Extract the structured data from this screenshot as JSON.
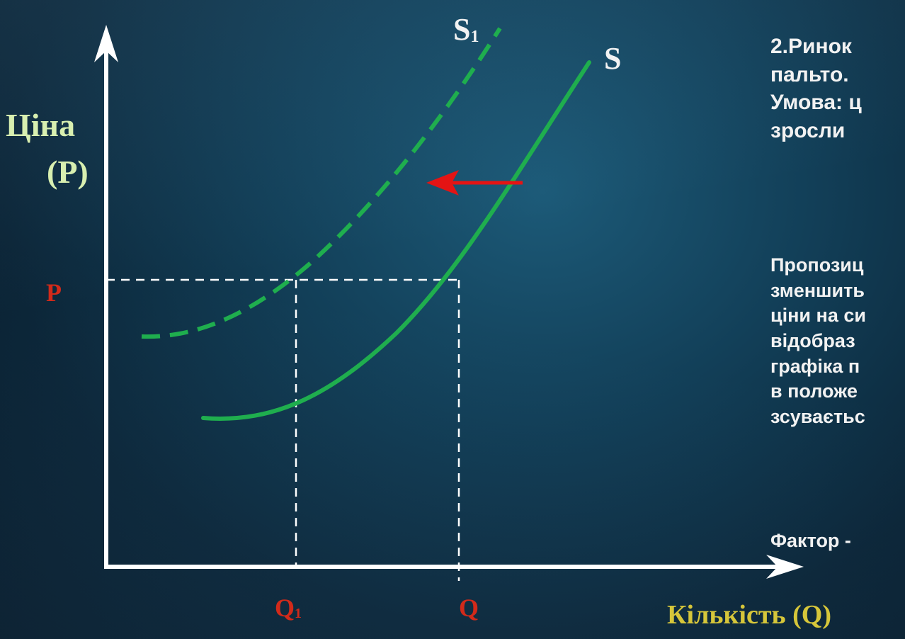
{
  "labels": {
    "y_axis": [
      "Ціна",
      "(P)"
    ],
    "x_axis": "Кількість (Q)",
    "price_marker": "P",
    "q1_marker": "Q",
    "q1_subscript": "1",
    "q_marker": "Q",
    "supply_new": "S",
    "supply_new_subscript": "1",
    "supply_original": "S"
  },
  "text_panel": {
    "block1": [
      "2.Ринок",
      "пальто.",
      "Умова: ц",
      "зросли"
    ],
    "block2": [
      "Пропозиц",
      "зменшить",
      "ціни на си",
      "відобраз",
      "графіка п",
      "в положе",
      "зсуваєтьс"
    ],
    "block3": "Фактор -"
  },
  "colors": {
    "supply_curve": "#1fae4e",
    "shift_arrow": "#e41414",
    "axis": "#ffffff",
    "axis_label": "#d8efb0",
    "marker_label": "#d22a1a",
    "x_axis_label": "#d6c63a"
  }
}
